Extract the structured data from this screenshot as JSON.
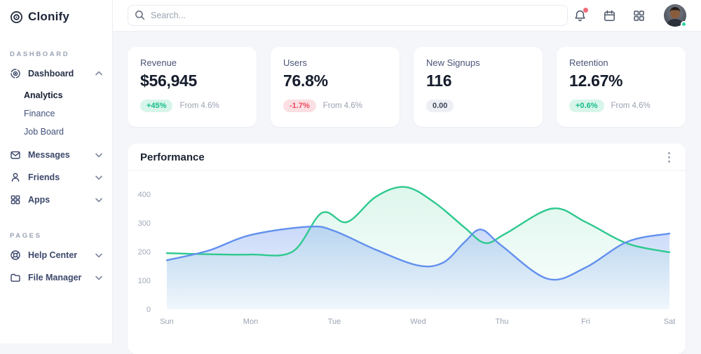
{
  "brand": {
    "name": "Clonify"
  },
  "search": {
    "placeholder": "Search..."
  },
  "topbar": {
    "icons": [
      "bell-icon",
      "calendar-icon",
      "apps-grid-icon",
      "user-avatar"
    ],
    "notification_dot_color": "#f06a76",
    "online_dot_color": "#2fd39e"
  },
  "sidebar": {
    "sections": [
      {
        "label": "DASHBOARD",
        "items": [
          {
            "label": "Dashboard",
            "icon": "dashboard-icon",
            "expanded": true,
            "children": [
              {
                "label": "Analytics",
                "active": true
              },
              {
                "label": "Finance",
                "active": false
              },
              {
                "label": "Job Board",
                "active": false
              }
            ]
          },
          {
            "label": "Messages",
            "icon": "messages-icon",
            "expanded": false
          },
          {
            "label": "Friends",
            "icon": "friends-icon",
            "expanded": false
          },
          {
            "label": "Apps",
            "icon": "apps-icon",
            "expanded": false
          }
        ]
      },
      {
        "label": "PAGES",
        "items": [
          {
            "label": "Help Center",
            "icon": "help-icon",
            "expanded": false
          },
          {
            "label": "File Manager",
            "icon": "folder-icon",
            "expanded": false
          }
        ]
      }
    ]
  },
  "cards": [
    {
      "title": "Revenue",
      "value": "$56,945",
      "badge": "+45%",
      "trend": "up",
      "note": "From 4.6%"
    },
    {
      "title": "Users",
      "value": "76.8%",
      "badge": "-1.7%",
      "trend": "down",
      "note": "From 4.6%"
    },
    {
      "title": "New Signups",
      "value": "116",
      "badge": "0.00",
      "trend": "neutral",
      "note": ""
    },
    {
      "title": "Retention",
      "value": "12.67%",
      "badge": "+0.6%",
      "trend": "up",
      "note": "From 4.6%"
    }
  ],
  "panel": {
    "title": "Performance"
  },
  "chart_data": {
    "type": "area",
    "title": "Performance",
    "categories": [
      "Sun",
      "Mon",
      "Tue",
      "Wed",
      "Thu",
      "Fri",
      "Sat"
    ],
    "yticks": [
      0,
      100,
      200,
      300,
      400
    ],
    "ylim": [
      0,
      440
    ],
    "grid": false,
    "legend": false,
    "x_unit": "day_index",
    "series": [
      {
        "name": "green",
        "color": "#2ec98e",
        "fill_top": "rgba(46,201,142,0.16)",
        "fill_bottom": "rgba(46,201,142,0.02)",
        "points": [
          [
            0,
            195
          ],
          [
            0.5,
            191
          ],
          [
            1,
            190
          ],
          [
            1.5,
            200
          ],
          [
            1.85,
            335
          ],
          [
            2.15,
            303
          ],
          [
            2.5,
            392
          ],
          [
            2.85,
            425
          ],
          [
            3.2,
            370
          ],
          [
            3.55,
            285
          ],
          [
            3.8,
            230
          ],
          [
            4.05,
            264
          ],
          [
            4.6,
            350
          ],
          [
            5,
            303
          ],
          [
            5.5,
            228
          ],
          [
            6,
            198
          ]
        ]
      },
      {
        "name": "blue",
        "color": "#6290ee",
        "fill_top": "rgba(98,144,238,0.34)",
        "fill_bottom": "rgba(98,144,238,0.07)",
        "points": [
          [
            0,
            170
          ],
          [
            0.5,
            204
          ],
          [
            1,
            258
          ],
          [
            1.7,
            287
          ],
          [
            2,
            272
          ],
          [
            2.5,
            206
          ],
          [
            3,
            152
          ],
          [
            3.3,
            162
          ],
          [
            3.55,
            232
          ],
          [
            3.75,
            277
          ],
          [
            4,
            220
          ],
          [
            4.55,
            105
          ],
          [
            5,
            145
          ],
          [
            5.5,
            235
          ],
          [
            6,
            263
          ]
        ]
      }
    ],
    "axis_label_color": "#a0a8b8"
  }
}
